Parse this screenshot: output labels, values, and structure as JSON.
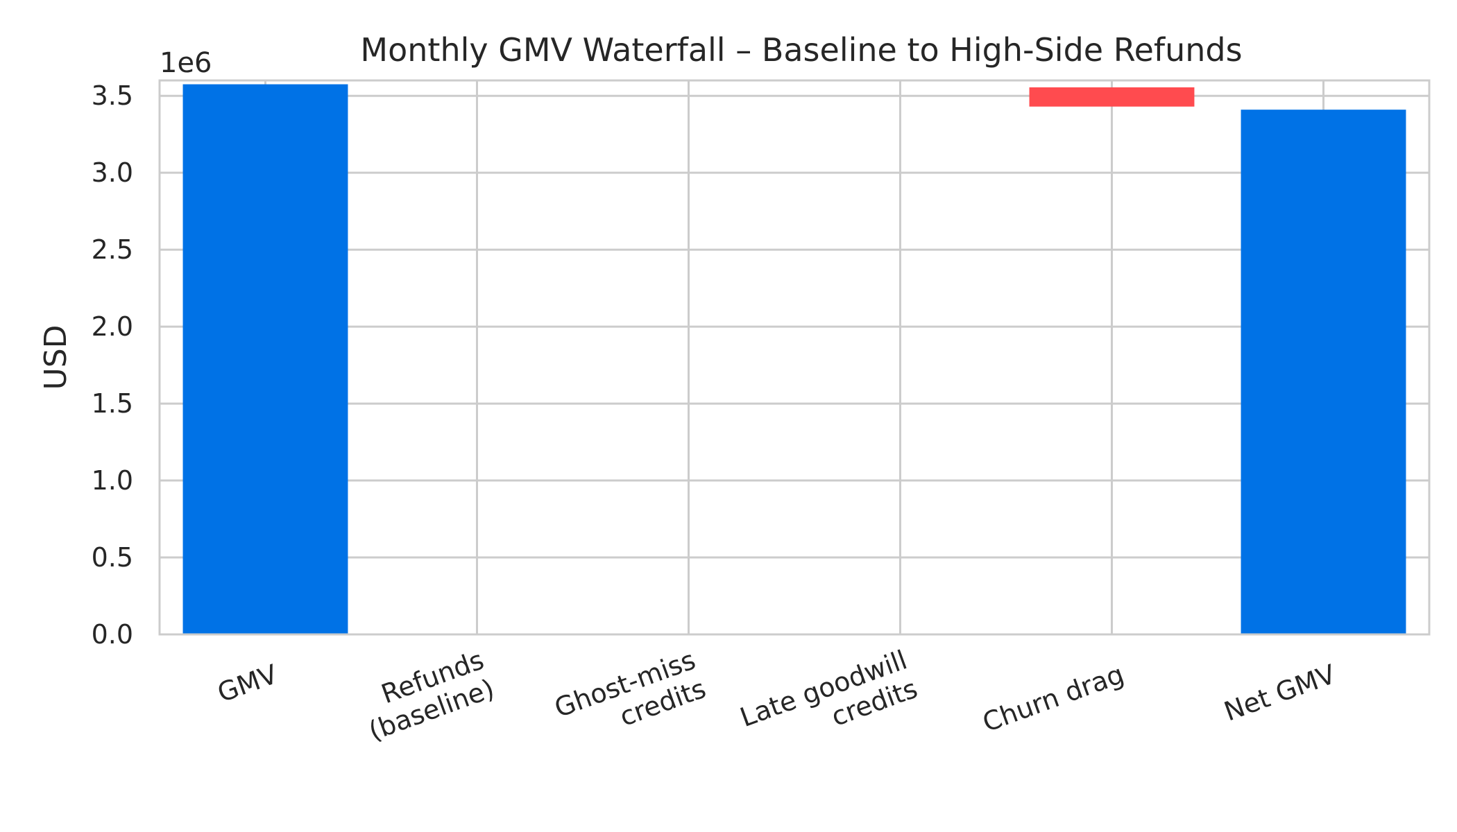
{
  "chart_data": {
    "type": "bar",
    "subtype": "waterfall",
    "title": "Monthly GMV Waterfall – Baseline to High-Side Refunds",
    "xlabel": "",
    "ylabel": "USD",
    "y_offset_label": "1e6",
    "ylim": [
      0,
      3.6
    ],
    "yticks": [
      "0.0",
      "0.5",
      "1.0",
      "1.5",
      "2.0",
      "2.5",
      "3.0",
      "3.5"
    ],
    "grid": true,
    "categories": [
      [
        "GMV"
      ],
      [
        "Refunds",
        "(baseline)"
      ],
      [
        "Ghost-miss",
        "credits"
      ],
      [
        "Late goodwill",
        "credits"
      ],
      [
        "Churn drag"
      ],
      [
        "Net GMV"
      ]
    ],
    "bars": [
      {
        "kind": "total",
        "bottom": 0,
        "top": 3.575
      },
      {
        "kind": "decrease",
        "bottom": 3.575,
        "top": 3.575
      },
      {
        "kind": "decrease",
        "bottom": 3.575,
        "top": 3.575
      },
      {
        "kind": "decrease",
        "bottom": 3.575,
        "top": 3.575
      },
      {
        "kind": "decrease",
        "bottom": 3.43,
        "top": 3.555
      },
      {
        "kind": "total",
        "bottom": 0,
        "top": 3.41
      }
    ],
    "colors": {
      "total": "#0072E6",
      "decrease": "#FF4B4F",
      "grid": "#CCCCCC",
      "text": "#262626"
    }
  }
}
